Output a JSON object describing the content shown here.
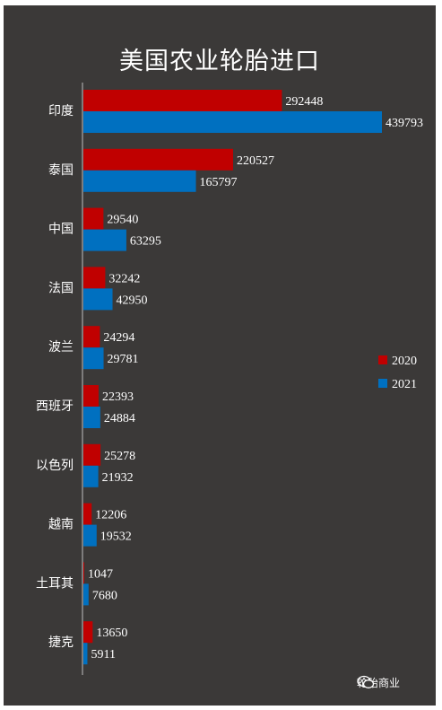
{
  "chart_data": {
    "type": "bar",
    "orientation": "horizontal",
    "title": "美国农业轮胎进口",
    "categories": [
      "印度",
      "泰国",
      "中国",
      "法国",
      "波兰",
      "西班牙",
      "以色列",
      "越南",
      "土耳其",
      "捷克"
    ],
    "series": [
      {
        "name": "2020",
        "color": "#c00000",
        "values": [
          292448,
          220527,
          29540,
          32242,
          24294,
          22393,
          25278,
          12206,
          1047,
          13650
        ]
      },
      {
        "name": "2021",
        "color": "#0070c0",
        "values": [
          439793,
          165797,
          63295,
          42950,
          29781,
          24884,
          21932,
          19532,
          7680,
          5911
        ]
      }
    ],
    "xlim": [
      0,
      439793
    ],
    "legend_position": "right",
    "grid": false,
    "background": "#3b3938"
  },
  "watermark": {
    "text": "轮胎商业",
    "icon": "wechat-icon"
  }
}
